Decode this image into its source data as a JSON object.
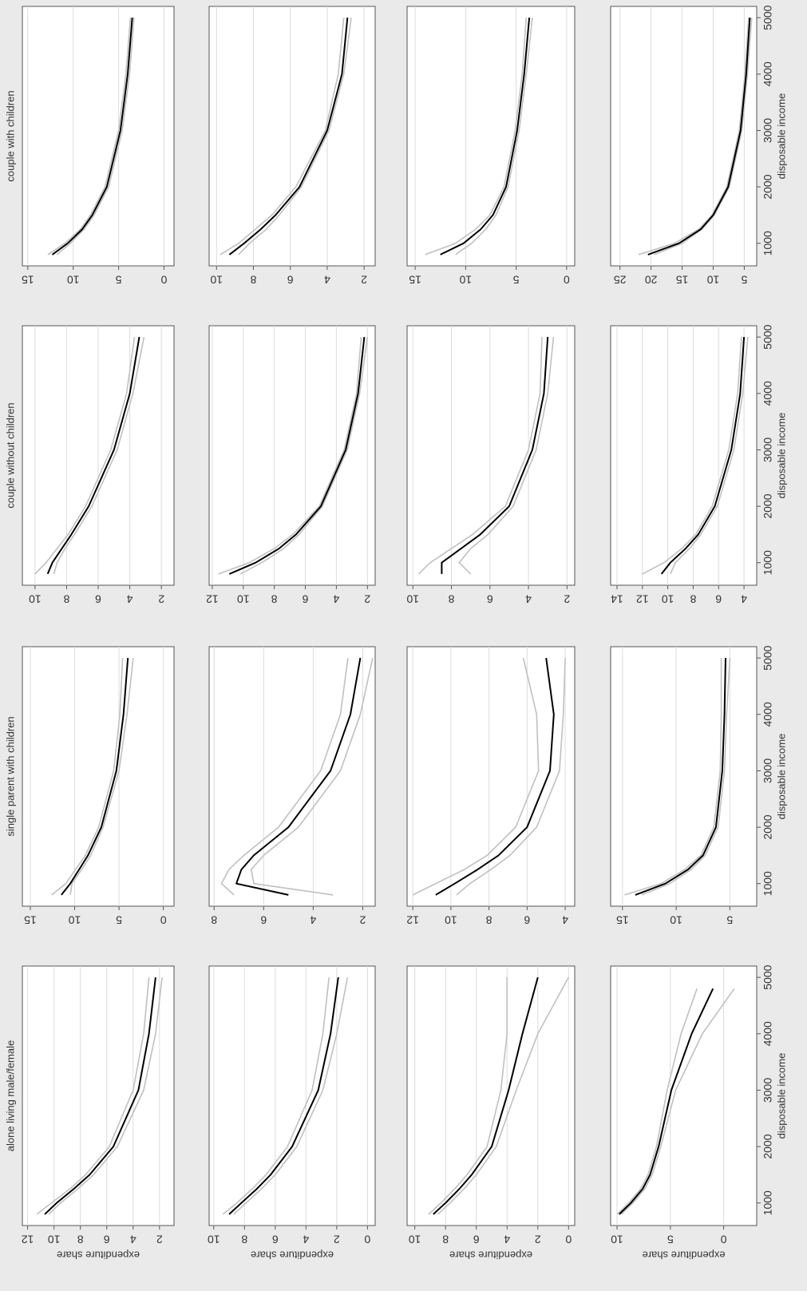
{
  "chart_data": [
    {
      "type": "line",
      "title": "couple with children",
      "x": [
        800,
        1000,
        1250,
        1500,
        2000,
        3000,
        4000,
        5000
      ],
      "xlim": [
        600,
        5200
      ],
      "ylim": [
        -1.1,
        15.6
      ],
      "yticks": [
        15,
        10,
        5,
        0
      ],
      "grid": true,
      "series": [
        {
          "color": "#000000",
          "values": [
            12.3,
            10.6,
            9.0,
            7.9,
            6.3,
            4.8,
            4.0,
            3.5
          ]
        },
        {
          "color": "#c0c0c0",
          "values": [
            11.8,
            10.3,
            8.8,
            7.7,
            6.1,
            4.6,
            3.8,
            3.3
          ]
        },
        {
          "color": "#c0c0c0",
          "values": [
            12.8,
            10.9,
            9.2,
            8.1,
            6.5,
            5.0,
            4.2,
            3.7
          ]
        }
      ]
    },
    {
      "type": "line",
      "x": [
        800,
        1000,
        1250,
        1500,
        2000,
        3000,
        4000,
        5000
      ],
      "xlim": [
        600,
        5200
      ],
      "ylim": [
        1.4,
        10.4
      ],
      "yticks": [
        10,
        8,
        6,
        4,
        2
      ],
      "grid": true,
      "series": [
        {
          "color": "#000000",
          "values": [
            9.3,
            8.5,
            7.6,
            6.8,
            5.5,
            4.0,
            3.2,
            2.9
          ]
        },
        {
          "color": "#c0c0c0",
          "values": [
            8.8,
            8.2,
            7.3,
            6.6,
            5.4,
            3.9,
            3.1,
            2.7
          ]
        },
        {
          "color": "#c0c0c0",
          "values": [
            9.8,
            8.8,
            7.9,
            7.0,
            5.7,
            4.1,
            3.4,
            3.1
          ]
        }
      ]
    },
    {
      "type": "line",
      "x": [
        800,
        1000,
        1250,
        1500,
        2000,
        3000,
        4000,
        5000
      ],
      "xlim": [
        600,
        5200
      ],
      "ylim": [
        -0.8,
        15.8
      ],
      "yticks": [
        15,
        10,
        5,
        0
      ],
      "grid": true,
      "series": [
        {
          "color": "#000000",
          "values": [
            12.5,
            10.2,
            8.5,
            7.3,
            6.0,
            4.9,
            4.2,
            3.7
          ]
        },
        {
          "color": "#c0c0c0",
          "values": [
            11.0,
            9.4,
            8.0,
            7.0,
            5.8,
            4.7,
            4.0,
            3.4
          ]
        },
        {
          "color": "#c0c0c0",
          "values": [
            14.0,
            11.0,
            9.0,
            7.6,
            6.2,
            5.1,
            4.4,
            4.0
          ]
        }
      ]
    },
    {
      "type": "line",
      "x": [
        800,
        1000,
        1250,
        1500,
        2000,
        3000,
        4000,
        5000
      ],
      "xlim": [
        600,
        5200
      ],
      "ylim": [
        3,
        26.5
      ],
      "yticks": [
        25,
        20,
        15,
        10,
        5
      ],
      "xticks": [
        1000,
        2000,
        3000,
        4000,
        5000
      ],
      "xlabel": "disposable income",
      "grid": true,
      "series": [
        {
          "color": "#000000",
          "values": [
            20.5,
            15.5,
            12.0,
            10.0,
            7.6,
            5.6,
            4.7,
            4.1
          ]
        },
        {
          "color": "#c0c0c0",
          "values": [
            19.5,
            15.0,
            11.8,
            9.8,
            7.4,
            5.4,
            4.5,
            3.8
          ]
        },
        {
          "color": "#c0c0c0",
          "values": [
            22.0,
            16.2,
            12.3,
            10.2,
            7.8,
            5.8,
            4.9,
            4.3
          ]
        }
      ]
    },
    {
      "type": "line",
      "title": "couple without children",
      "x": [
        800,
        1000,
        1250,
        1500,
        2000,
        3000,
        4000,
        5000
      ],
      "xlim": [
        600,
        5200
      ],
      "ylim": [
        1.2,
        10.8
      ],
      "yticks": [
        10,
        8,
        6,
        4,
        2
      ],
      "grid": true,
      "series": [
        {
          "color": "#000000",
          "values": [
            9.2,
            8.9,
            8.3,
            7.7,
            6.6,
            5.0,
            4.0,
            3.4
          ]
        },
        {
          "color": "#c0c0c0",
          "values": [
            8.8,
            8.6,
            8.1,
            7.5,
            6.4,
            4.8,
            3.8,
            3.1
          ]
        },
        {
          "color": "#c0c0c0",
          "values": [
            10.0,
            9.3,
            8.6,
            7.9,
            6.8,
            5.2,
            4.2,
            3.7
          ]
        }
      ]
    },
    {
      "type": "line",
      "x": [
        800,
        1000,
        1250,
        1500,
        2000,
        3000,
        4000,
        5000
      ],
      "xlim": [
        600,
        5200
      ],
      "ylim": [
        1.5,
        12.2
      ],
      "yticks": [
        12,
        10,
        8,
        6,
        4,
        2
      ],
      "grid": true,
      "series": [
        {
          "color": "#000000",
          "values": [
            10.9,
            9.2,
            7.7,
            6.6,
            5.0,
            3.4,
            2.6,
            2.2
          ]
        },
        {
          "color": "#c0c0c0",
          "values": [
            10.2,
            8.8,
            7.4,
            6.4,
            4.9,
            3.3,
            2.5,
            2.0
          ]
        },
        {
          "color": "#c0c0c0",
          "values": [
            11.6,
            9.6,
            8.0,
            6.8,
            5.1,
            3.5,
            2.7,
            2.4
          ]
        }
      ]
    },
    {
      "type": "line",
      "x": [
        800,
        1000,
        1250,
        1500,
        2000,
        3000,
        4000,
        5000
      ],
      "xlim": [
        600,
        5200
      ],
      "ylim": [
        1.6,
        10.3
      ],
      "yticks": [
        10,
        8,
        6,
        4,
        2
      ],
      "grid": true,
      "series": [
        {
          "color": "#000000",
          "values": [
            8.5,
            8.5,
            7.5,
            6.5,
            5.0,
            3.8,
            3.2,
            3.0
          ]
        },
        {
          "color": "#c0c0c0",
          "values": [
            7.0,
            7.6,
            7.0,
            6.1,
            4.8,
            3.6,
            3.0,
            2.7
          ]
        },
        {
          "color": "#c0c0c0",
          "values": [
            9.7,
            9.1,
            8.0,
            6.9,
            5.2,
            4.0,
            3.4,
            3.3
          ]
        }
      ]
    },
    {
      "type": "line",
      "x": [
        800,
        1000,
        1250,
        1500,
        2000,
        3000,
        4000,
        5000
      ],
      "xlim": [
        600,
        5200
      ],
      "ylim": [
        3,
        14.5
      ],
      "yticks": [
        14,
        12,
        10,
        8,
        6,
        4
      ],
      "xticks": [
        1000,
        2000,
        3000,
        4000,
        5000
      ],
      "xlabel": "disposable income",
      "grid": true,
      "series": [
        {
          "color": "#000000",
          "values": [
            10.5,
            9.8,
            8.6,
            7.6,
            6.3,
            5.0,
            4.3,
            4.0
          ]
        },
        {
          "color": "#c0c0c0",
          "values": [
            9.8,
            9.4,
            8.3,
            7.4,
            6.1,
            4.8,
            4.1,
            3.7
          ]
        },
        {
          "color": "#c0c0c0",
          "values": [
            12.0,
            10.3,
            8.9,
            7.8,
            6.5,
            5.2,
            4.5,
            4.2
          ]
        }
      ]
    },
    {
      "type": "line",
      "title": "single parent with children",
      "x": [
        800,
        1000,
        1250,
        1500,
        2000,
        3000,
        4000,
        5000
      ],
      "xlim": [
        600,
        5200
      ],
      "ylim": [
        -1.2,
        15.9
      ],
      "yticks": [
        15,
        10,
        5,
        0
      ],
      "grid": true,
      "series": [
        {
          "color": "#000000",
          "values": [
            11.5,
            10.5,
            9.5,
            8.5,
            7.0,
            5.3,
            4.5,
            4.0
          ]
        },
        {
          "color": "#c0c0c0",
          "values": [
            10.5,
            10.3,
            9.2,
            8.2,
            6.8,
            5.0,
            4.1,
            3.4
          ]
        },
        {
          "color": "#c0c0c0",
          "values": [
            12.6,
            11.0,
            9.9,
            8.8,
            7.3,
            5.6,
            4.9,
            4.6
          ]
        }
      ]
    },
    {
      "type": "line",
      "x": [
        800,
        1000,
        1250,
        1500,
        2000,
        3000,
        4000,
        5000
      ],
      "xlim": [
        600,
        5200
      ],
      "ylim": [
        1.5,
        8.2
      ],
      "yticks": [
        8,
        6,
        4,
        2
      ],
      "grid": true,
      "series": [
        {
          "color": "#000000",
          "values": [
            5.0,
            7.1,
            6.9,
            6.4,
            5.0,
            3.3,
            2.5,
            2.1
          ]
        },
        {
          "color": "#c0c0c0",
          "values": [
            3.2,
            6.4,
            6.5,
            6.0,
            4.6,
            2.9,
            2.1,
            1.6
          ]
        },
        {
          "color": "#c0c0c0",
          "values": [
            7.2,
            7.7,
            7.4,
            6.8,
            5.4,
            3.7,
            2.9,
            2.6
          ]
        }
      ]
    },
    {
      "type": "line",
      "x": [
        800,
        1000,
        1250,
        1500,
        2000,
        3000,
        4000,
        5000
      ],
      "xlim": [
        600,
        5200
      ],
      "ylim": [
        3.5,
        12.3
      ],
      "yticks": [
        12,
        10,
        8,
        6,
        4
      ],
      "grid": true,
      "series": [
        {
          "color": "#000000",
          "values": [
            10.8,
            9.8,
            8.6,
            7.5,
            6.0,
            4.8,
            4.6,
            5.0
          ]
        },
        {
          "color": "#c0c0c0",
          "values": [
            9.7,
            9.0,
            7.9,
            6.9,
            5.5,
            4.3,
            4.1,
            4.0
          ]
        },
        {
          "color": "#c0c0c0",
          "values": [
            12.0,
            10.8,
            9.3,
            8.1,
            6.6,
            5.4,
            5.5,
            6.2
          ]
        }
      ]
    },
    {
      "type": "line",
      "x": [
        800,
        1000,
        1250,
        1500,
        2000,
        3000,
        4000,
        5000
      ],
      "xlim": [
        600,
        5200
      ],
      "ylim": [
        2.5,
        16.1
      ],
      "yticks": [
        15,
        10,
        5
      ],
      "xticks": [
        1000,
        2000,
        3000,
        4000,
        5000
      ],
      "xlabel": "disposable income",
      "grid": true,
      "series": [
        {
          "color": "#000000",
          "values": [
            13.8,
            11.0,
            8.9,
            7.5,
            6.3,
            5.7,
            5.5,
            5.4
          ]
        },
        {
          "color": "#c0c0c0",
          "values": [
            13.2,
            10.6,
            8.6,
            7.3,
            6.1,
            5.5,
            5.3,
            5.0
          ]
        },
        {
          "color": "#c0c0c0",
          "values": [
            14.8,
            11.4,
            9.2,
            7.7,
            6.5,
            5.9,
            5.8,
            5.8
          ]
        }
      ]
    },
    {
      "type": "line",
      "title": "alone living male/female",
      "x": [
        800,
        1000,
        1250,
        1500,
        2000,
        3000,
        4000,
        5000
      ],
      "xlim": [
        600,
        5200
      ],
      "ylim": [
        0.9,
        12.4
      ],
      "yticks": [
        12,
        10,
        8,
        6,
        4,
        2
      ],
      "ylabel": "expenditure share",
      "grid": true,
      "series": [
        {
          "color": "#000000",
          "values": [
            10.7,
            9.8,
            8.5,
            7.3,
            5.5,
            3.6,
            2.8,
            2.3
          ]
        },
        {
          "color": "#c0c0c0",
          "values": [
            10.4,
            9.5,
            8.2,
            7.0,
            5.2,
            3.2,
            2.3,
            1.8
          ]
        },
        {
          "color": "#c0c0c0",
          "values": [
            11.3,
            10.2,
            8.8,
            7.6,
            5.8,
            4.0,
            3.2,
            2.8
          ]
        }
      ]
    },
    {
      "type": "line",
      "x": [
        800,
        1000,
        1250,
        1500,
        2000,
        3000,
        4000,
        5000
      ],
      "xlim": [
        600,
        5200
      ],
      "ylim": [
        -0.5,
        10.3
      ],
      "yticks": [
        10,
        8,
        6,
        4,
        2,
        0
      ],
      "ylabel": "expenditure share",
      "grid": true,
      "series": [
        {
          "color": "#000000",
          "values": [
            9.0,
            8.2,
            7.2,
            6.3,
            4.9,
            3.2,
            2.4,
            1.9
          ]
        },
        {
          "color": "#c0c0c0",
          "values": [
            8.7,
            7.9,
            6.9,
            6.0,
            4.6,
            2.9,
            2.0,
            1.3
          ]
        },
        {
          "color": "#c0c0c0",
          "values": [
            9.4,
            8.5,
            7.5,
            6.6,
            5.2,
            3.6,
            2.9,
            2.5
          ]
        }
      ]
    },
    {
      "type": "line",
      "x": [
        800,
        1000,
        1250,
        1500,
        2000,
        3000,
        4000,
        5000
      ],
      "xlim": [
        600,
        5200
      ],
      "ylim": [
        -0.4,
        10.5
      ],
      "yticks": [
        10,
        8,
        6,
        4,
        2,
        0
      ],
      "ylabel": "expenditure share",
      "grid": true,
      "series": [
        {
          "color": "#000000",
          "values": [
            8.8,
            8.0,
            7.1,
            6.3,
            5.0,
            3.9,
            3.0,
            2.0
          ]
        },
        {
          "color": "#c0c0c0",
          "values": [
            8.5,
            7.7,
            6.8,
            6.0,
            4.7,
            3.4,
            2.0,
            0.0
          ]
        },
        {
          "color": "#c0c0c0",
          "values": [
            9.1,
            8.3,
            7.4,
            6.6,
            5.3,
            4.4,
            4.0,
            4.0
          ]
        }
      ]
    },
    {
      "type": "line",
      "x": [
        800,
        1000,
        1250,
        1500,
        2000,
        3000,
        4000,
        4800
      ],
      "xlim": [
        600,
        5200
      ],
      "ylim": [
        -3.1,
        10.6
      ],
      "yticks": [
        10,
        5,
        0
      ],
      "xticks": [
        1000,
        2000,
        3000,
        4000,
        5000
      ],
      "xlabel": "disposable income",
      "ylabel": "expenditure share",
      "grid": true,
      "series": [
        {
          "color": "#000000",
          "values": [
            9.8,
            8.7,
            7.6,
            6.9,
            6.1,
            4.9,
            3.0,
            1.0
          ]
        },
        {
          "color": "#c0c0c0",
          "values": [
            9.6,
            8.5,
            7.4,
            6.7,
            5.9,
            4.5,
            2.0,
            -1.0
          ]
        },
        {
          "color": "#c0c0c0",
          "values": [
            10.0,
            8.9,
            7.8,
            7.1,
            6.3,
            5.3,
            4.0,
            2.5
          ]
        }
      ]
    }
  ]
}
